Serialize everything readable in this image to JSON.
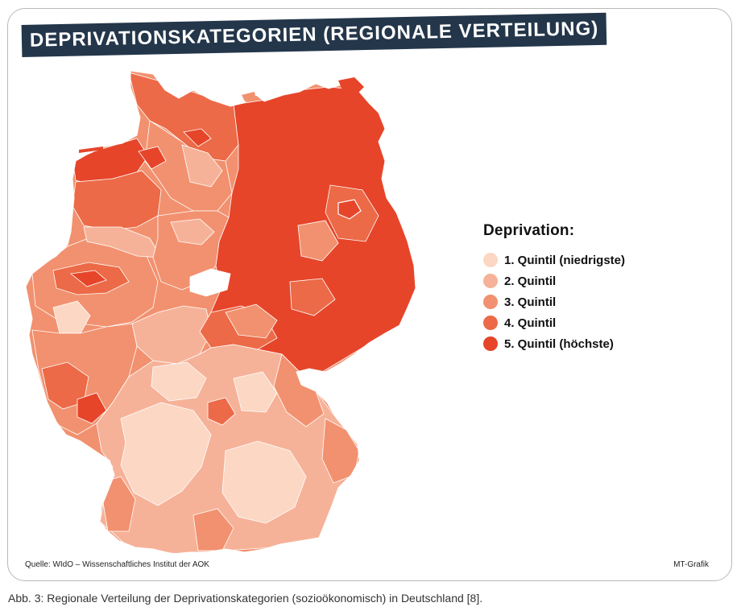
{
  "figure": {
    "title": "DEPRIVATIONSKATEGORIEN (REGIONALE VERTEILUNG)",
    "source": "Quelle: WIdO – Wissenschaftliches Institut der AOK",
    "credit": "MT-Grafik",
    "caption": "Abb. 3: Regionale Verteilung der Deprivationskategorien (sozioökonomisch) in Deutschland [8]."
  },
  "legend": {
    "title": "Deprivation:",
    "items": [
      {
        "label": "1. Quintil (niedrigste)",
        "color": "#fbd7c4"
      },
      {
        "label": "2. Quintil",
        "color": "#f6b298"
      },
      {
        "label": "3. Quintil",
        "color": "#f2916f"
      },
      {
        "label": "4. Quintil",
        "color": "#ec6a47"
      },
      {
        "label": "5. Quintil (höchste)",
        "color": "#e6452a"
      }
    ]
  },
  "map": {
    "region": "Germany",
    "colors": {
      "q1": "#fbd7c4",
      "q2": "#f6b298",
      "q3": "#f2916f",
      "q4": "#ec6a47",
      "q5": "#e6452a",
      "border": "#ffffff",
      "frame": "#b9b9b9",
      "banner": "#24364a"
    }
  }
}
